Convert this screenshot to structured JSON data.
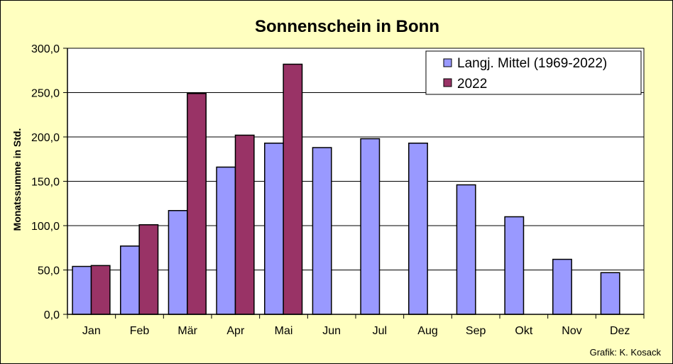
{
  "chart_data": {
    "type": "bar",
    "title": "Sonnenschein in Bonn",
    "ylabel": "Monatssumme in Std.",
    "xlabel": "",
    "ylim": [
      0,
      300
    ],
    "y_ticks": [
      "0,0",
      "50,0",
      "100,0",
      "150,0",
      "200,0",
      "250,0",
      "300,0"
    ],
    "y_tick_values": [
      0,
      50,
      100,
      150,
      200,
      250,
      300
    ],
    "grid": true,
    "legend_position": "top-right",
    "categories": [
      "Jan",
      "Feb",
      "Mär",
      "Apr",
      "Mai",
      "Jun",
      "Jul",
      "Aug",
      "Sep",
      "Okt",
      "Nov",
      "Dez"
    ],
    "series": [
      {
        "name": "Langj. Mittel (1969-2022)",
        "color": "#9999ff",
        "values": [
          54,
          77,
          117,
          166,
          193,
          188,
          198,
          193,
          146,
          110,
          62,
          47
        ]
      },
      {
        "name": "2022",
        "color": "#993366",
        "values": [
          55,
          101,
          249,
          202,
          282,
          null,
          null,
          null,
          null,
          null,
          null,
          null
        ]
      }
    ],
    "annotation": "Grafik:  K. Kosack"
  },
  "colors": {
    "background": "#ffffc0",
    "plot_area": "#ffffff",
    "axis": "#000000"
  }
}
